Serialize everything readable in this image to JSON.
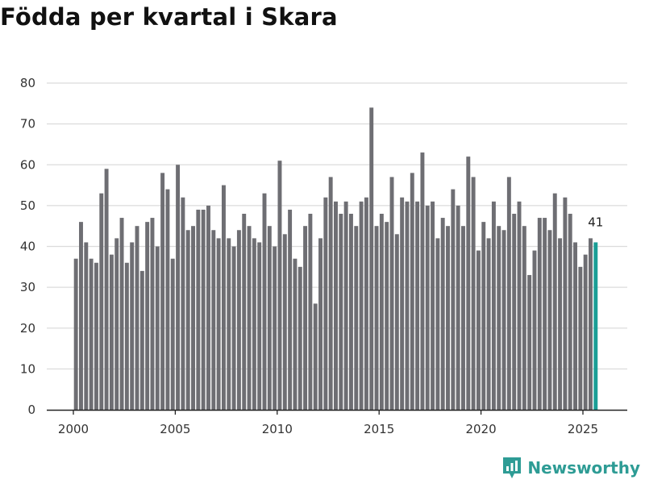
{
  "chart_data": {
    "type": "bar",
    "title": "Födda per kvartal i Skara",
    "xlabel": "",
    "ylabel": "",
    "ylim": [
      0,
      80
    ],
    "y_ticks": [
      0,
      10,
      20,
      30,
      40,
      50,
      60,
      70,
      80
    ],
    "x_ticks": [
      2000,
      2005,
      2010,
      2015,
      2020,
      2025
    ],
    "start_year": 2000,
    "start_quarter": 1,
    "values": [
      37,
      46,
      41,
      37,
      36,
      53,
      59,
      38,
      42,
      47,
      36,
      41,
      45,
      34,
      46,
      47,
      40,
      58,
      54,
      37,
      60,
      52,
      44,
      45,
      49,
      49,
      50,
      44,
      42,
      55,
      42,
      40,
      44,
      48,
      45,
      42,
      41,
      53,
      45,
      40,
      61,
      43,
      49,
      37,
      35,
      45,
      48,
      26,
      42,
      52,
      57,
      51,
      48,
      51,
      48,
      45,
      51,
      52,
      74,
      45,
      48,
      46,
      57,
      43,
      52,
      51,
      58,
      51,
      63,
      50,
      51,
      42,
      47,
      45,
      54,
      50,
      45,
      62,
      57,
      39,
      46,
      42,
      51,
      45,
      44,
      57,
      48,
      51,
      45,
      33,
      39,
      47,
      47,
      44,
      53,
      42,
      52,
      48,
      41,
      35,
      38,
      42,
      41
    ],
    "highlight_label": "41",
    "bar_color": "#6e6e73",
    "highlight_color": "#1a9e96",
    "grid": true
  },
  "brand": {
    "name": "Newsworthy"
  }
}
